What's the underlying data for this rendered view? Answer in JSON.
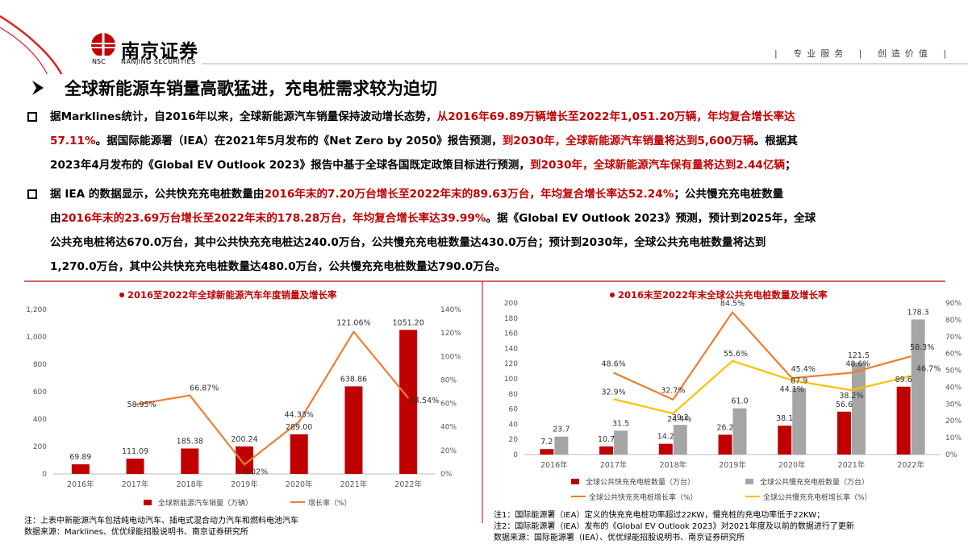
{
  "header": {
    "brand_cn": "南京证券",
    "brand_abbr": "NSC",
    "brand_en": "NANJING SECURITIES",
    "slogan": "| 专业服务 | 创造价值 |"
  },
  "title": "全球新能源车销量高歌猛进，充电桩需求较为迫切",
  "paragraphs": {
    "p1": {
      "l1a": "据Marklines统计，自2016年以来，全球新能源汽车销量保持波动增长态势，",
      "l1b": "从2016年69.89万辆增长至2022年1,051.20万辆，年均复合增长率达",
      "l2a": "57.11%",
      "l2b": "。据国际能源署（IEA）在2021年5月发布的《Net Zero by 2050》报告预测，",
      "l2c": "到2030年，全球新能源汽车销量将达到5,600万辆",
      "l2d": "。根据其",
      "l3a": "2023年4月发布的《Global EV Outlook 2023》报告中基于全球各国既定政策目标进行预测，",
      "l3b": "到2030年，全球新能源汽车保有量将达到2.44亿辆",
      "l3c": "；"
    },
    "p2": {
      "l1a": "据 IEA 的数据显示，公共快充充电桩数量由",
      "l1b": "2016年末的7.20万台增长至2022年末的89.63万台，年均复合增长率达52.24%",
      "l1c": "；公共慢充充电桩数量",
      "l2a": "由",
      "l2b": "2016年末的23.69万台增长至2022年末的178.28万台，年均复合增长率达39.99%",
      "l2c": "。据《Global EV Outlook 2023》预测，预计到2025年，全球",
      "l3": "公共充电桩将达670.0万台，其中公共快充充电桩达240.0万台，公共慢充充电桩数量达430.0万台；预计到2030年，全球公共充电桩数量将达到",
      "l4": "1,270.0万台，其中公共快充充电桩数量达480.0万台，公共慢充充电桩数量达790.0万台。"
    }
  },
  "notes": {
    "left1": "注：上表中新能源汽车包括纯电动汽车、插电式混合动力汽车和燃料电池汽车",
    "left2": "数据来源：Marklines、优优绿能招股说明书、南京证券研究所",
    "right1": "注1：国际能源署（IEA）定义的快充充电桩功率超过22KW，慢充桩的充电功率低于22KW；",
    "right2": "注2：国际能源署（IEA）发布的《Global EV Outlook 2023》对2021年度及以前的数据进行了更新",
    "right3": "数据来源：国际能源署（IEA）、优优绿能招股说明书、南京证券研究所"
  },
  "colors": {
    "red": "#c00000",
    "orange": "#ed7d31",
    "gray": "#a5a5a5",
    "yellow": "#ffc000"
  },
  "chart_data": [
    {
      "type": "bar",
      "title": "2016至2022年全球新能源汽车年度销量及增长率",
      "categories": [
        "2016年",
        "2017年",
        "2018年",
        "2019年",
        "2020年",
        "2021年",
        "2022年"
      ],
      "y_left_ticks": [
        "0",
        "200",
        "400",
        "600",
        "800",
        "1,000",
        "1,200"
      ],
      "y_right_ticks": [
        "0%",
        "20%",
        "40%",
        "60%",
        "80%",
        "100%",
        "120%",
        "140%"
      ],
      "ylim_left": [
        0,
        1200
      ],
      "ylim_right": [
        0,
        140
      ],
      "series": [
        {
          "name": "全球新能源汽车销量（万辆）",
          "type": "bar",
          "values": [
            69.89,
            111.09,
            185.38,
            200.24,
            289.0,
            638.86,
            1051.2
          ],
          "labels": [
            "69.89",
            "111.09",
            "185.38",
            "200.24",
            "289.00",
            "638.86",
            "1051.20"
          ]
        },
        {
          "name": "增长率（%）",
          "type": "line",
          "values": [
            null,
            58.95,
            66.87,
            8.02,
            44.33,
            121.06,
            64.54
          ],
          "labels": [
            "",
            "58.95%",
            "66.87%",
            "8.02%",
            "44.33%",
            "121.06%",
            "64.54%"
          ]
        }
      ]
    },
    {
      "type": "bar",
      "title": "2016末至2022年末全球公共充电桩数量及增长率",
      "categories": [
        "2016年",
        "2017年",
        "2018年",
        "2019年",
        "2020年",
        "2021年",
        "2022年"
      ],
      "y_left_ticks": [
        "0",
        "20",
        "40",
        "60",
        "80",
        "100",
        "120",
        "140",
        "160",
        "180",
        "200"
      ],
      "y_right_ticks": [
        "0%",
        "10%",
        "20%",
        "30%",
        "40%",
        "50%",
        "60%",
        "70%",
        "80%",
        "90%"
      ],
      "ylim_left": [
        0,
        200
      ],
      "ylim_right": [
        0,
        90
      ],
      "series": [
        {
          "name": "全球公共快充充电桩数量（万台）",
          "type": "bar",
          "values": [
            7.2,
            10.7,
            14.2,
            26.2,
            38.1,
            56.6,
            89.6
          ],
          "labels": [
            "7.2",
            "10.7",
            "14.2",
            "26.2",
            "38.1",
            "56.6",
            "89.6"
          ]
        },
        {
          "name": "全球公共慢充充电桩数量（万台）",
          "type": "bar",
          "values": [
            23.7,
            31.5,
            39.2,
            61.0,
            87.9,
            121.5,
            178.3
          ],
          "labels": [
            "23.7",
            "31.5",
            "39.2",
            "61.0",
            "87.9",
            "121.5",
            "178.3"
          ]
        },
        {
          "name": "全球公共快充充电桩增长率（%）",
          "type": "line",
          "values": [
            null,
            48.6,
            32.7,
            84.5,
            45.4,
            48.6,
            58.3
          ],
          "labels": [
            "",
            "48.6%",
            "32.7%",
            "84.5%",
            "45.4%",
            "48.6%",
            "58.3%"
          ]
        },
        {
          "name": "全球公共慢充充电桩增长率（%）",
          "type": "line",
          "values": [
            null,
            32.9,
            24.4,
            55.6,
            44.1,
            38.2,
            46.7
          ],
          "labels": [
            "",
            "32.9%",
            "24.4%",
            "55.6%",
            "44.1%",
            "38.2%",
            "46.7%"
          ]
        }
      ]
    }
  ]
}
